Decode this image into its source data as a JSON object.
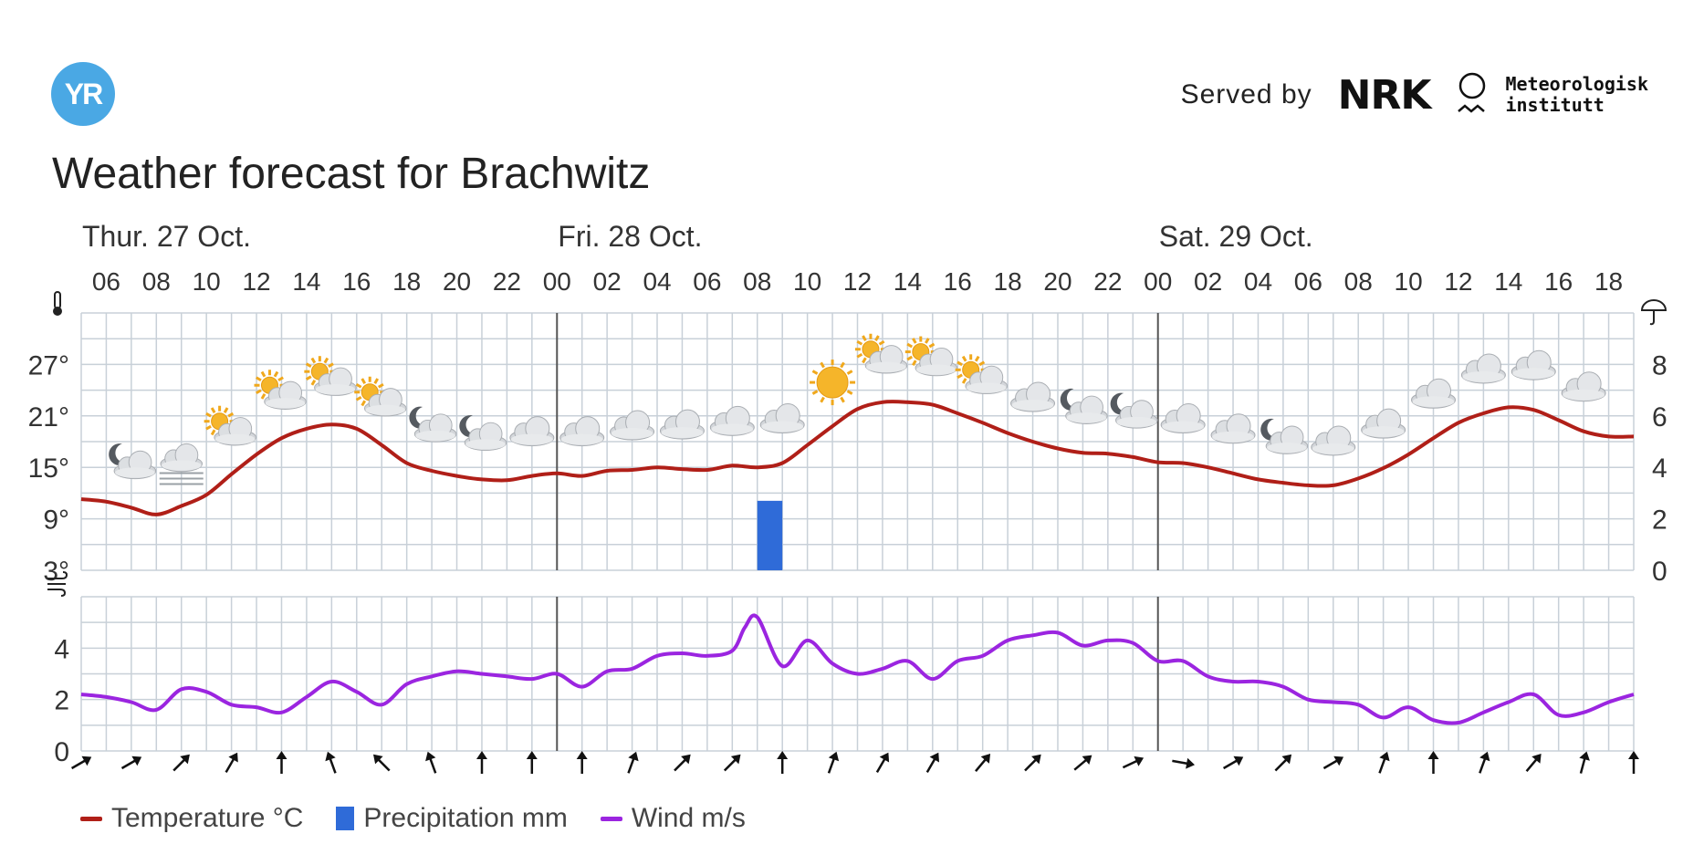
{
  "header": {
    "logo_text": "YR",
    "served_by": "Served by",
    "nrk_logo": "NRK",
    "met_line1": "Meteorologisk",
    "met_line2": "institutt"
  },
  "title": "Weather forecast for Brachwitz",
  "legend": {
    "temperature": "Temperature °C",
    "precipitation": "Precipitation mm",
    "wind": "Wind m/s"
  },
  "colors": {
    "temperature": "#b01f18",
    "precipitation": "#2f6bd8",
    "wind": "#9b25e0",
    "grid": "#c8d0d8",
    "day_divider": "#555555"
  },
  "icons": {
    "temperature_axis": "thermometer-icon",
    "precipitation_axis": "umbrella-icon",
    "wind_axis": "wind-icon"
  },
  "chart_data": {
    "type": "line",
    "x_unit": "hour",
    "days": [
      {
        "label": "Thur. 27 Oct.",
        "start_hour": 5
      },
      {
        "label": "Fri. 28 Oct.",
        "start_hour": 24
      },
      {
        "label": "Sat. 29 Oct.",
        "start_hour": 48
      }
    ],
    "hour_range": [
      5,
      67
    ],
    "tick_hours": [
      6,
      8,
      10,
      12,
      14,
      16,
      18,
      20,
      22,
      24,
      26,
      28,
      30,
      32,
      34,
      36,
      38,
      40,
      42,
      44,
      46,
      48,
      50,
      52,
      54,
      56,
      58,
      60,
      62,
      64,
      66
    ],
    "tick_labels": [
      "06",
      "08",
      "10",
      "12",
      "14",
      "16",
      "18",
      "20",
      "22",
      "00",
      "02",
      "04",
      "06",
      "08",
      "10",
      "12",
      "14",
      "16",
      "18",
      "20",
      "22",
      "00",
      "02",
      "04",
      "06",
      "08",
      "10",
      "12",
      "14",
      "16",
      "18"
    ],
    "temperature": {
      "name": "Temperature °C",
      "ylim": [
        3,
        33
      ],
      "yticks": [
        3,
        9,
        15,
        21,
        27
      ],
      "ytick_labels": [
        "3°",
        "9°",
        "15°",
        "21°",
        "27°"
      ],
      "x": [
        5,
        6,
        7,
        8,
        9,
        10,
        11,
        12,
        13,
        14,
        15,
        16,
        17,
        18,
        19,
        20,
        21,
        22,
        23,
        24,
        25,
        26,
        27,
        28,
        29,
        30,
        31,
        32,
        33,
        34,
        35,
        36,
        37,
        38,
        39,
        40,
        41,
        42,
        43,
        44,
        45,
        46,
        47,
        48,
        49,
        50,
        51,
        52,
        53,
        54,
        55,
        56,
        57,
        58,
        59,
        60,
        61,
        62,
        63,
        64,
        65,
        66,
        67
      ],
      "y": [
        11.3,
        11,
        10.3,
        9.5,
        10.5,
        11.8,
        14.2,
        16.5,
        18.4,
        19.5,
        20,
        19.5,
        17.6,
        15.5,
        14.6,
        14,
        13.6,
        13.5,
        14,
        14.3,
        14,
        14.6,
        14.7,
        15,
        14.8,
        14.7,
        15.2,
        15,
        15.5,
        17.6,
        19.8,
        21.8,
        22.6,
        22.6,
        22.3,
        21.3,
        20.2,
        19,
        18,
        17.2,
        16.7,
        16.6,
        16.2,
        15.6,
        15.5,
        15,
        14.3,
        13.6,
        13.2,
        12.9,
        12.9,
        13.7,
        14.9,
        16.5,
        18.4,
        20.2,
        21.3,
        22,
        21.7,
        20.5,
        19.2,
        18.6,
        18.6
      ]
    },
    "precipitation": {
      "name": "Precipitation mm",
      "ylim": [
        0,
        10
      ],
      "yticks": [
        0,
        2,
        4,
        6,
        8
      ],
      "ytick_labels": [
        "0",
        "2",
        "4",
        "6",
        "8"
      ],
      "bars": [
        {
          "hour": 32,
          "value": 2.7
        }
      ]
    },
    "wind": {
      "name": "Wind m/s",
      "ylim": [
        0,
        6
      ],
      "yticks": [
        0,
        2,
        4
      ],
      "ytick_labels": [
        "0",
        "2",
        "4"
      ],
      "x": [
        5,
        6,
        7,
        8,
        9,
        10,
        11,
        12,
        13,
        14,
        15,
        16,
        17,
        18,
        19,
        20,
        21,
        22,
        23,
        24,
        25,
        26,
        27,
        28,
        29,
        30,
        31,
        31.5,
        32,
        33,
        34,
        35,
        36,
        37,
        38,
        39,
        40,
        41,
        42,
        43,
        44,
        45,
        46,
        47,
        48,
        49,
        50,
        51,
        52,
        53,
        54,
        55,
        56,
        57,
        58,
        59,
        60,
        61,
        62,
        63,
        64,
        65,
        66,
        67
      ],
      "y": [
        2.2,
        2.1,
        1.9,
        1.6,
        2.4,
        2.3,
        1.8,
        1.7,
        1.5,
        2.1,
        2.7,
        2.3,
        1.8,
        2.6,
        2.9,
        3.1,
        3,
        2.9,
        2.8,
        3,
        2.5,
        3.1,
        3.2,
        3.7,
        3.8,
        3.7,
        3.9,
        4.8,
        5.2,
        3.3,
        4.3,
        3.4,
        3,
        3.2,
        3.5,
        2.8,
        3.5,
        3.7,
        4.3,
        4.5,
        4.6,
        4.1,
        4.3,
        4.2,
        3.5,
        3.5,
        2.9,
        2.7,
        2.7,
        2.5,
        2,
        1.9,
        1.8,
        1.3,
        1.7,
        1.2,
        1.1,
        1.5,
        1.9,
        2.2,
        1.4,
        1.5,
        1.9,
        2.2
      ],
      "direction_hours": [
        5,
        7,
        9,
        11,
        13,
        15,
        17,
        19,
        21,
        23,
        25,
        27,
        29,
        31,
        33,
        35,
        37,
        39,
        41,
        43,
        45,
        47,
        49,
        51,
        53,
        55,
        57,
        59,
        61,
        63,
        65,
        67
      ],
      "direction_to_deg": [
        60,
        60,
        45,
        30,
        0,
        -20,
        -45,
        -20,
        0,
        0,
        0,
        20,
        45,
        45,
        0,
        20,
        30,
        30,
        40,
        45,
        50,
        65,
        100,
        60,
        45,
        60,
        20,
        0,
        20,
        40,
        15,
        0
      ]
    },
    "symbols": [
      {
        "hour": 7,
        "icon": "partly-cloudy-night-icon"
      },
      {
        "hour": 9,
        "icon": "fog-icon"
      },
      {
        "hour": 11,
        "icon": "partly-cloudy-day-icon"
      },
      {
        "hour": 13,
        "icon": "partly-cloudy-day-icon"
      },
      {
        "hour": 15,
        "icon": "partly-cloudy-day-icon"
      },
      {
        "hour": 17,
        "icon": "partly-cloudy-day-icon"
      },
      {
        "hour": 19,
        "icon": "partly-cloudy-night-icon"
      },
      {
        "hour": 21,
        "icon": "partly-cloudy-night-icon"
      },
      {
        "hour": 23,
        "icon": "cloudy-icon"
      },
      {
        "hour": 25,
        "icon": "cloudy-icon"
      },
      {
        "hour": 27,
        "icon": "cloudy-icon"
      },
      {
        "hour": 29,
        "icon": "cloudy-icon"
      },
      {
        "hour": 31,
        "icon": "cloudy-icon"
      },
      {
        "hour": 33,
        "icon": "cloudy-icon"
      },
      {
        "hour": 35,
        "icon": "clear-sky-day-icon"
      },
      {
        "hour": 37,
        "icon": "partly-cloudy-day-icon"
      },
      {
        "hour": 39,
        "icon": "partly-cloudy-day-icon"
      },
      {
        "hour": 41,
        "icon": "partly-cloudy-day-icon"
      },
      {
        "hour": 43,
        "icon": "cloudy-icon"
      },
      {
        "hour": 45,
        "icon": "partly-cloudy-night-icon"
      },
      {
        "hour": 47,
        "icon": "partly-cloudy-night-icon"
      },
      {
        "hour": 49,
        "icon": "cloudy-icon"
      },
      {
        "hour": 51,
        "icon": "cloudy-icon"
      },
      {
        "hour": 53,
        "icon": "partly-cloudy-night-icon"
      },
      {
        "hour": 55,
        "icon": "cloudy-icon"
      },
      {
        "hour": 57,
        "icon": "cloudy-icon"
      },
      {
        "hour": 59,
        "icon": "cloudy-icon"
      },
      {
        "hour": 61,
        "icon": "cloudy-icon"
      },
      {
        "hour": 63,
        "icon": "cloudy-icon"
      },
      {
        "hour": 65,
        "icon": "cloudy-icon"
      }
    ]
  }
}
